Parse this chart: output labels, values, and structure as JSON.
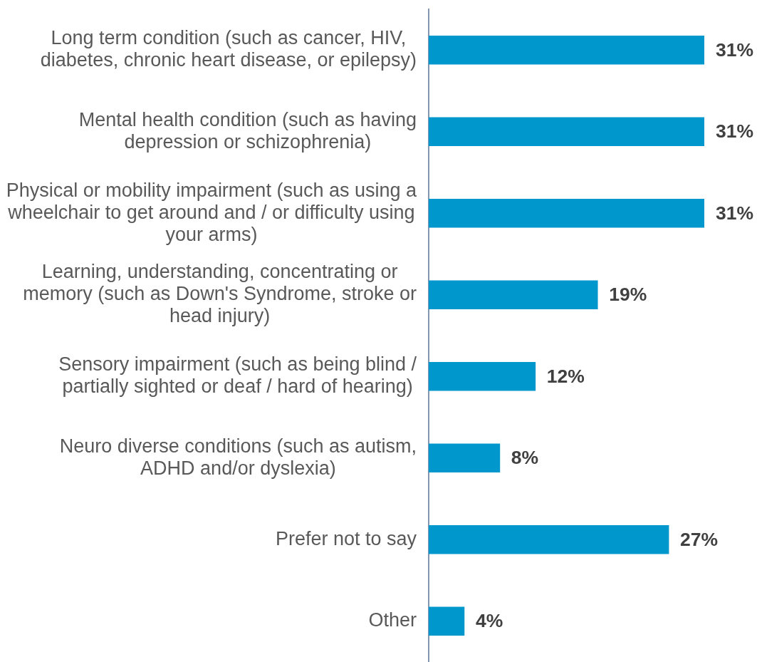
{
  "chart_data": {
    "type": "bar",
    "orientation": "horizontal",
    "categories": [
      "Long term condition (such as cancer, HIV, diabetes, chronic heart disease, or epilepsy)",
      "Mental health condition (such as having depression or schizophrenia)",
      "Physical or mobility impairment (such as using a wheelchair to get around and / or difficulty using your arms)",
      "Learning, understanding, concentrating or memory (such as Down's Syndrome, stroke or head injury)",
      "Sensory impairment (such as being blind / partially sighted or deaf / hard of hearing)",
      "Neuro diverse conditions (such as autism, ADHD and/or dyslexia)",
      "Prefer not to say",
      "Other"
    ],
    "values": [
      31,
      31,
      31,
      19,
      12,
      8,
      27,
      4
    ],
    "value_labels": [
      "31%",
      "31%",
      "31%",
      "19%",
      "12%",
      "8%",
      "27%",
      "4%"
    ],
    "color": "#0097cc",
    "tick_labels": "y"
  }
}
